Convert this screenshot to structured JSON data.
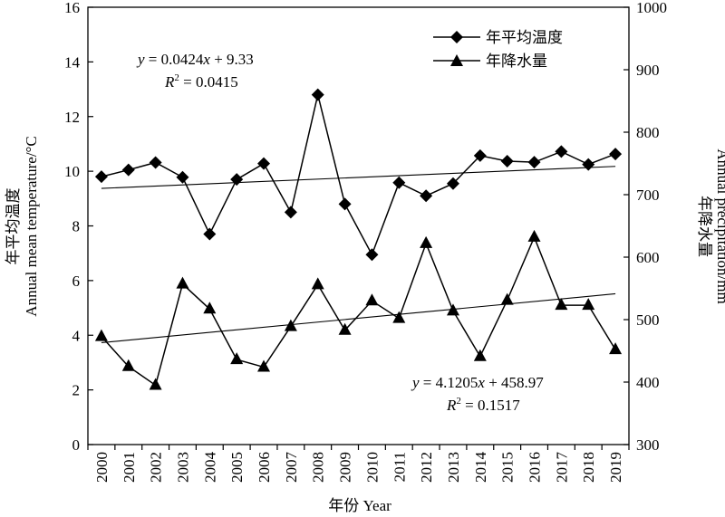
{
  "chart_data": {
    "type": "line",
    "x": [
      "2000",
      "2001",
      "2002",
      "2003",
      "2004",
      "2005",
      "2006",
      "2007",
      "2008",
      "2009",
      "2010",
      "2011",
      "2012",
      "2013",
      "2014",
      "2015",
      "2016",
      "2017",
      "2018",
      "2019"
    ],
    "series": [
      {
        "name": "年平均温度",
        "axis": "left",
        "marker": "diamond",
        "values": [
          9.8,
          10.05,
          10.32,
          9.78,
          7.7,
          9.7,
          10.28,
          8.5,
          12.8,
          8.8,
          6.95,
          9.58,
          9.1,
          9.55,
          10.57,
          10.37,
          10.33,
          10.72,
          10.25,
          10.63
        ]
      },
      {
        "name": "年降水量",
        "axis": "right",
        "marker": "triangle",
        "values": [
          473,
          425,
          395,
          557,
          517,
          436,
          424,
          489,
          556,
          483,
          530,
          502,
          622,
          514,
          441,
          531,
          632,
          523,
          523,
          452
        ]
      }
    ],
    "trendlines": [
      {
        "series": "年平均温度",
        "slope": 0.0424,
        "intercept": 9.33
      },
      {
        "series": "年降水量",
        "slope": 4.1205,
        "intercept": 458.97
      }
    ],
    "xlabel": "年份 Year",
    "ylabel_left": [
      "年平均温度",
      "Annual mean temperature/°C"
    ],
    "ylabel_right": [
      "年降水量",
      "Annual precipitation/mm"
    ],
    "ylim_left": [
      0,
      16
    ],
    "ylim_right": [
      300,
      1000
    ],
    "yticks_left": [
      "0",
      "2",
      "4",
      "6",
      "8",
      "10",
      "12",
      "14",
      "16"
    ],
    "yticks_right": [
      "300",
      "400",
      "500",
      "600",
      "700",
      "800",
      "900",
      "1000"
    ],
    "legend_position": "top-right",
    "grid": false,
    "annotations": {
      "temp_equation": {
        "y_var": "y",
        "rhs": " = 0.0424",
        "x_var": "x",
        "tail": " + 9.33",
        "r_var": "R",
        "r_sup": "2",
        "r_value": " = 0.0415"
      },
      "precip_equation": {
        "y_var": "y",
        "rhs": " = 4.1205",
        "x_var": "x",
        "tail": " + 458.97",
        "r_var": "R",
        "r_sup": "2",
        "r_value": " = 0.1517"
      }
    }
  }
}
